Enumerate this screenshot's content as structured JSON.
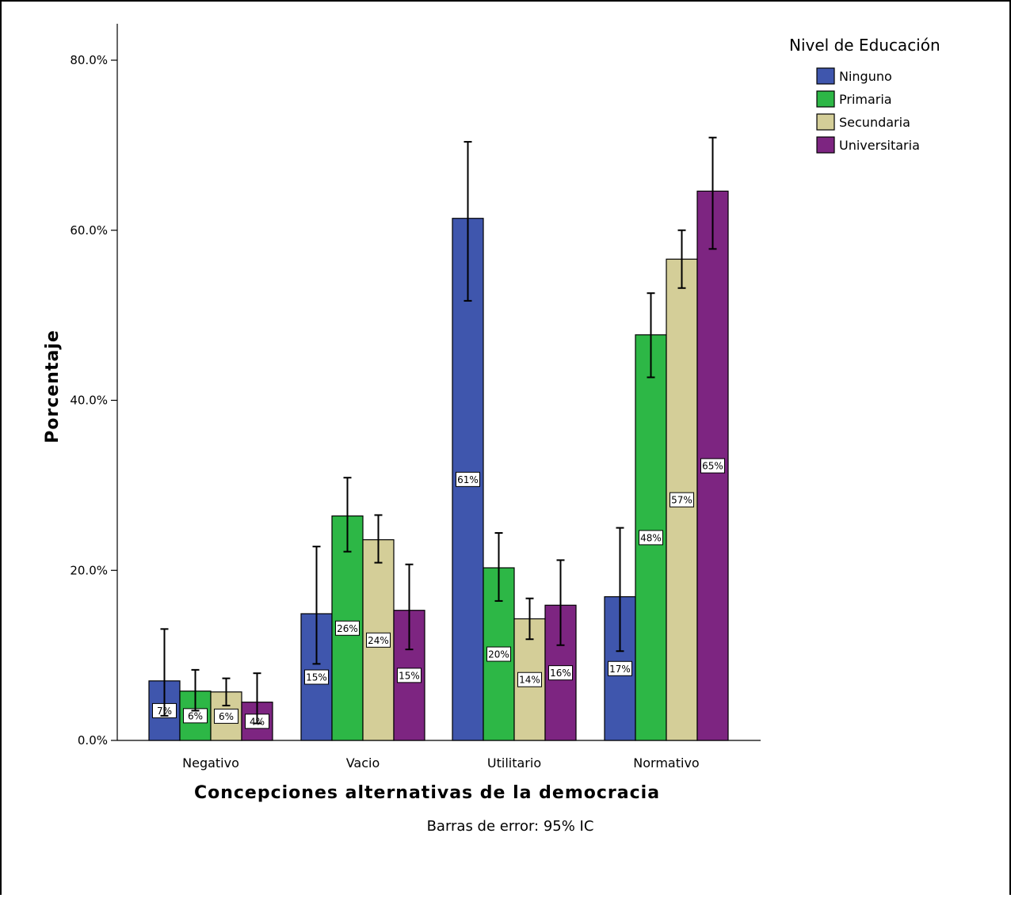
{
  "chart_data": {
    "type": "bar",
    "xlabel": "Concepciones alternativas de la democracia",
    "ylabel": "Porcentaje",
    "note": "Barras de error: 95% IC",
    "ylim": [
      0,
      84
    ],
    "yticks": [
      {
        "value": 0,
        "label": "0.0%"
      },
      {
        "value": 20,
        "label": "20.0%"
      },
      {
        "value": 40,
        "label": "40.0%"
      },
      {
        "value": 60,
        "label": "60.0%"
      },
      {
        "value": 80,
        "label": "80.0%"
      }
    ],
    "categories": [
      "Negativo",
      "Vacio",
      "Utilitario",
      "Normativo"
    ],
    "legend": {
      "title": "Nivel de Educación",
      "position": "top-right"
    },
    "grid": false,
    "series": [
      {
        "name": "Ninguno",
        "color": "#3f56ad",
        "values": [
          7.0,
          14.9,
          61.4,
          16.9
        ],
        "labels": [
          "7%",
          "15%",
          "61%",
          "17%"
        ],
        "error_low": [
          2.9,
          9.0,
          51.7,
          10.5
        ],
        "error_high": [
          13.1,
          22.8,
          70.4,
          25.0
        ]
      },
      {
        "name": "Primaria",
        "color": "#2db746",
        "values": [
          5.8,
          26.4,
          20.3,
          47.7
        ],
        "labels": [
          "6%",
          "26%",
          "20%",
          "48%"
        ],
        "error_low": [
          3.5,
          22.2,
          16.4,
          42.7
        ],
        "error_high": [
          8.3,
          30.9,
          24.4,
          52.6
        ]
      },
      {
        "name": "Secundaria",
        "color": "#d4ce98",
        "values": [
          5.7,
          23.6,
          14.3,
          56.6
        ],
        "labels": [
          "6%",
          "24%",
          "14%",
          "57%"
        ],
        "error_low": [
          4.1,
          20.9,
          11.9,
          53.2
        ],
        "error_high": [
          7.3,
          26.5,
          16.7,
          60.0
        ]
      },
      {
        "name": "Universitaria",
        "color": "#7d2581",
        "values": [
          4.5,
          15.3,
          15.9,
          64.6
        ],
        "labels": [
          "4%",
          "15%",
          "16%",
          "65%"
        ],
        "error_low": [
          2.0,
          10.7,
          11.2,
          57.8
        ],
        "error_high": [
          7.9,
          20.7,
          21.2,
          70.9
        ]
      }
    ]
  }
}
